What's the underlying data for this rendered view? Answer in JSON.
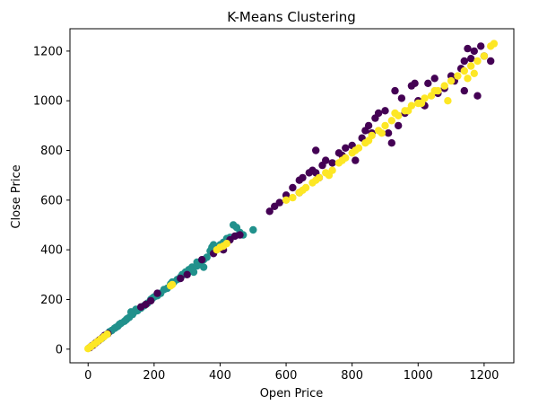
{
  "chart_data": {
    "type": "scatter",
    "title": "K-Means Clustering",
    "xlabel": "Open Price",
    "ylabel": "Close Price",
    "xlim": [
      -55,
      1290
    ],
    "ylim": [
      -55,
      1290
    ],
    "xticks": [
      0,
      200,
      400,
      600,
      800,
      1000,
      1200
    ],
    "yticks": [
      0,
      200,
      400,
      600,
      800,
      1000,
      1200
    ],
    "grid": false,
    "legend": "none",
    "colors": {
      "purple": "#440154",
      "teal": "#21918c",
      "yellow": "#fde725"
    },
    "series": [
      {
        "color": "#21918c",
        "points": [
          [
            40,
            42
          ],
          [
            55,
            58
          ],
          [
            65,
            70
          ],
          [
            72,
            75
          ],
          [
            80,
            84
          ],
          [
            90,
            92
          ],
          [
            100,
            104
          ],
          [
            110,
            112
          ],
          [
            118,
            122
          ],
          [
            125,
            128
          ],
          [
            135,
            140
          ],
          [
            140,
            150
          ],
          [
            150,
            155
          ],
          [
            160,
            165
          ],
          [
            170,
            175
          ],
          [
            180,
            185
          ],
          [
            190,
            200
          ],
          [
            200,
            210
          ],
          [
            220,
            225
          ],
          [
            240,
            245
          ],
          [
            250,
            262
          ],
          [
            255,
            270
          ],
          [
            270,
            280
          ],
          [
            280,
            290
          ],
          [
            290,
            300
          ],
          [
            300,
            305
          ],
          [
            305,
            320
          ],
          [
            315,
            330
          ],
          [
            320,
            310
          ],
          [
            330,
            335
          ],
          [
            340,
            345
          ],
          [
            350,
            360
          ],
          [
            360,
            370
          ],
          [
            370,
            395
          ],
          [
            375,
            410
          ],
          [
            380,
            420
          ],
          [
            390,
            405
          ],
          [
            400,
            420
          ],
          [
            410,
            430
          ],
          [
            420,
            445
          ],
          [
            430,
            450
          ],
          [
            440,
            500
          ],
          [
            450,
            490
          ],
          [
            460,
            470
          ],
          [
            470,
            460
          ],
          [
            500,
            480
          ],
          [
            350,
            330
          ],
          [
            330,
            350
          ],
          [
            310,
            320
          ],
          [
            295,
            310
          ],
          [
            285,
            300
          ],
          [
            260,
            270
          ],
          [
            230,
            240
          ],
          [
            210,
            215
          ],
          [
            195,
            205
          ],
          [
            145,
            160
          ],
          [
            130,
            150
          ],
          [
            115,
            118
          ],
          [
            95,
            100
          ],
          [
            85,
            88
          ]
        ]
      },
      {
        "color": "#440154",
        "points": [
          [
            5,
            6
          ],
          [
            10,
            12
          ],
          [
            15,
            16
          ],
          [
            20,
            22
          ],
          [
            25,
            27
          ],
          [
            30,
            32
          ],
          [
            35,
            38
          ],
          [
            45,
            48
          ],
          [
            50,
            55
          ],
          [
            60,
            62
          ],
          [
            160,
            170
          ],
          [
            175,
            180
          ],
          [
            190,
            195
          ],
          [
            210,
            225
          ],
          [
            280,
            285
          ],
          [
            300,
            300
          ],
          [
            345,
            360
          ],
          [
            380,
            385
          ],
          [
            410,
            400
          ],
          [
            430,
            440
          ],
          [
            445,
            455
          ],
          [
            460,
            460
          ],
          [
            550,
            555
          ],
          [
            565,
            575
          ],
          [
            580,
            590
          ],
          [
            600,
            620
          ],
          [
            620,
            650
          ],
          [
            640,
            680
          ],
          [
            650,
            690
          ],
          [
            670,
            710
          ],
          [
            680,
            720
          ],
          [
            690,
            800
          ],
          [
            700,
            690
          ],
          [
            710,
            740
          ],
          [
            720,
            760
          ],
          [
            740,
            750
          ],
          [
            760,
            790
          ],
          [
            780,
            810
          ],
          [
            800,
            820
          ],
          [
            810,
            760
          ],
          [
            830,
            850
          ],
          [
            840,
            880
          ],
          [
            850,
            900
          ],
          [
            860,
            870
          ],
          [
            870,
            930
          ],
          [
            880,
            950
          ],
          [
            900,
            960
          ],
          [
            910,
            870
          ],
          [
            920,
            830
          ],
          [
            930,
            1040
          ],
          [
            940,
            900
          ],
          [
            950,
            1010
          ],
          [
            960,
            950
          ],
          [
            980,
            1060
          ],
          [
            990,
            1070
          ],
          [
            1000,
            1000
          ],
          [
            1020,
            980
          ],
          [
            1030,
            1070
          ],
          [
            1050,
            1090
          ],
          [
            1060,
            1030
          ],
          [
            1080,
            1050
          ],
          [
            1100,
            1100
          ],
          [
            1110,
            1080
          ],
          [
            1130,
            1130
          ],
          [
            1140,
            1160
          ],
          [
            1150,
            1210
          ],
          [
            1160,
            1170
          ],
          [
            1170,
            1200
          ],
          [
            1180,
            1020
          ],
          [
            1190,
            1220
          ],
          [
            1200,
            1180
          ],
          [
            1220,
            1160
          ],
          [
            1140,
            1040
          ],
          [
            770,
            780
          ],
          [
            640,
            630
          ],
          [
            690,
            710
          ]
        ]
      },
      {
        "color": "#fde725",
        "points": [
          [
            0,
            2
          ],
          [
            8,
            10
          ],
          [
            18,
            20
          ],
          [
            28,
            30
          ],
          [
            38,
            40
          ],
          [
            48,
            50
          ],
          [
            58,
            60
          ],
          [
            250,
            255
          ],
          [
            255,
            260
          ],
          [
            390,
            400
          ],
          [
            400,
            410
          ],
          [
            410,
            415
          ],
          [
            420,
            425
          ],
          [
            600,
            600
          ],
          [
            620,
            610
          ],
          [
            640,
            630
          ],
          [
            660,
            650
          ],
          [
            680,
            670
          ],
          [
            700,
            690
          ],
          [
            720,
            710
          ],
          [
            740,
            720
          ],
          [
            760,
            750
          ],
          [
            780,
            770
          ],
          [
            800,
            790
          ],
          [
            820,
            810
          ],
          [
            840,
            830
          ],
          [
            860,
            860
          ],
          [
            880,
            880
          ],
          [
            900,
            900
          ],
          [
            920,
            920
          ],
          [
            940,
            940
          ],
          [
            960,
            960
          ],
          [
            980,
            980
          ],
          [
            1000,
            990
          ],
          [
            1020,
            1010
          ],
          [
            1040,
            1020
          ],
          [
            1060,
            1040
          ],
          [
            1080,
            1060
          ],
          [
            1100,
            1080
          ],
          [
            1120,
            1100
          ],
          [
            1140,
            1120
          ],
          [
            1160,
            1140
          ],
          [
            1180,
            1160
          ],
          [
            1200,
            1180
          ],
          [
            1220,
            1220
          ],
          [
            1230,
            1230
          ],
          [
            1150,
            1090
          ],
          [
            1170,
            1110
          ],
          [
            1090,
            1000
          ],
          [
            1050,
            1040
          ],
          [
            1010,
            990
          ],
          [
            970,
            960
          ],
          [
            930,
            950
          ],
          [
            890,
            870
          ],
          [
            850,
            840
          ],
          [
            810,
            800
          ],
          [
            770,
            760
          ],
          [
            730,
            700
          ],
          [
            690,
            680
          ],
          [
            650,
            640
          ]
        ]
      }
    ]
  }
}
